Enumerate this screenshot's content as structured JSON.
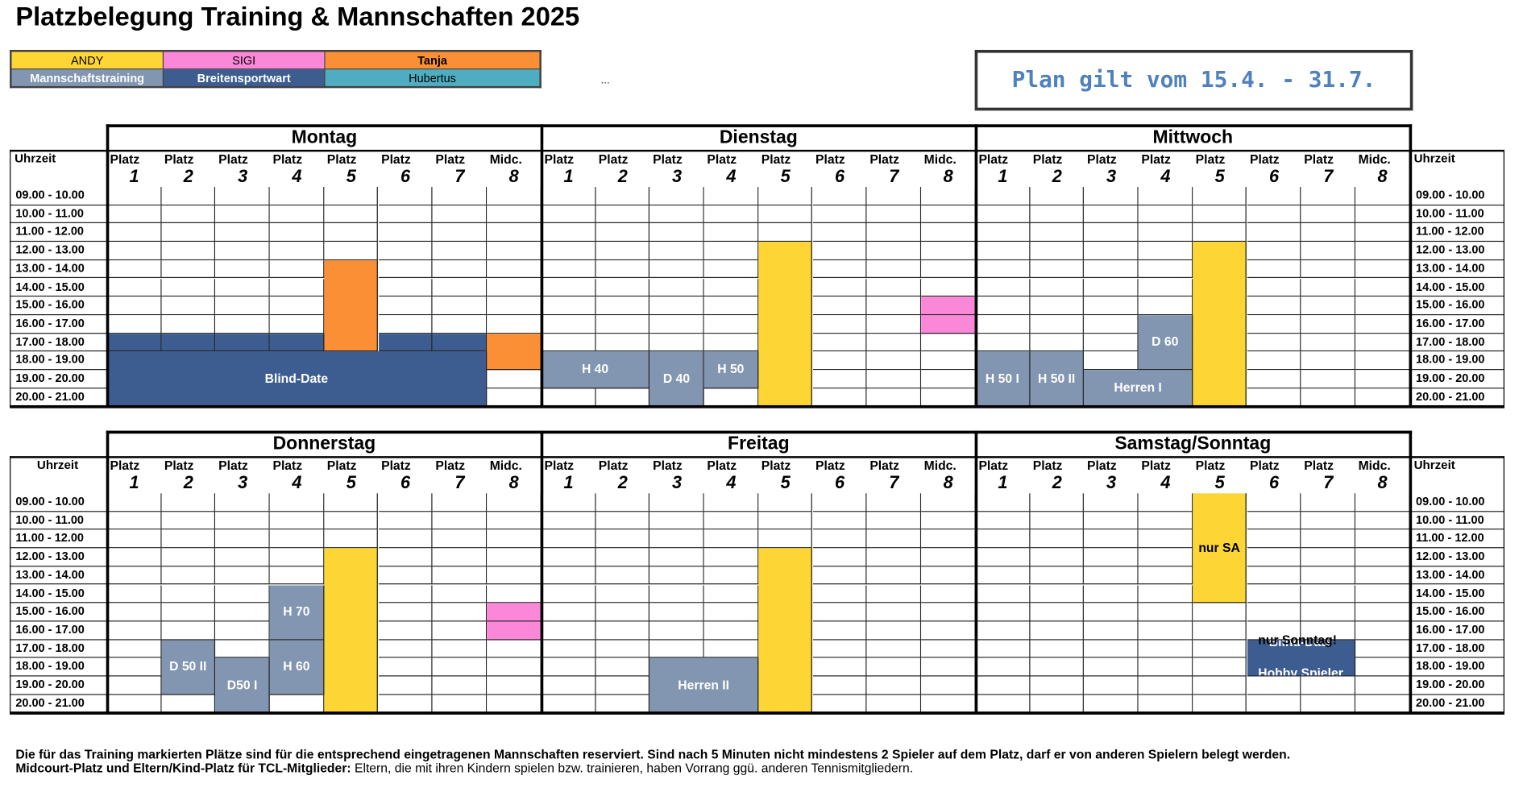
{
  "title": "Platzbelegung Training & Mannschaften 2025",
  "legend": [
    [
      {
        "text": "ANDY",
        "color": "#fdd534",
        "fg": "#000"
      },
      {
        "text": "SIGI",
        "color": "#fb87d8",
        "fg": "#000"
      },
      {
        "text": "Tanja",
        "color": "#fb8f35",
        "fg": "#000"
      }
    ],
    [
      {
        "text": "Mannschaftstraining",
        "color": "#8295b1",
        "fg": "#fff"
      },
      {
        "text": "Breitensportwart",
        "color": "#3d5d91",
        "fg": "#fff"
      },
      {
        "text": "Hubertus",
        "color": "#4fadc1",
        "fg": "#000"
      }
    ]
  ],
  "ellipsis": "...",
  "plan_text": "Plan gilt vom 15.4. - 31.7.",
  "uhrzeit_label": "Uhrzeit",
  "platz_labels": [
    "Platz",
    "Platz",
    "Platz",
    "Platz",
    "Platz",
    "Platz",
    "Platz",
    "Midc."
  ],
  "platz_numbers": [
    "1",
    "2",
    "3",
    "4",
    "5",
    "6",
    "7",
    "8"
  ],
  "times": [
    "09.00 - 10.00",
    "10.00 - 11.00",
    "11.00 - 12.00",
    "12.00 - 13.00",
    "13.00 - 14.00",
    "14.00 - 15.00",
    "15.00 - 16.00",
    "16.00 - 17.00",
    "17.00 - 18.00",
    "18.00 - 19.00",
    "19.00 - 20.00",
    "20.00 - 21.00"
  ],
  "colors": {
    "andy": "#fdd534",
    "sigi": "#fb87d8",
    "tanja": "#fb8f35",
    "mannschaft": "#8295b1",
    "breiten": "#3d5d91",
    "hubertus": "#4fadc1"
  },
  "schedules": [
    {
      "days": [
        {
          "name": "Montag",
          "blocks": [
            {
              "court": 5,
              "start": 4,
              "span": 5,
              "color": "tanja",
              "label": ""
            },
            {
              "court": 1,
              "start": 8,
              "span": 1,
              "color": "breiten",
              "label": ""
            },
            {
              "court": 2,
              "start": 8,
              "span": 1,
              "color": "breiten",
              "label": ""
            },
            {
              "court": 3,
              "start": 8,
              "span": 1,
              "color": "breiten",
              "label": ""
            },
            {
              "court": 4,
              "start": 8,
              "span": 1,
              "color": "breiten",
              "label": ""
            },
            {
              "court": 6,
              "start": 8,
              "span": 1,
              "color": "breiten",
              "label": ""
            },
            {
              "court": 7,
              "start": 8,
              "span": 1,
              "color": "breiten",
              "label": ""
            },
            {
              "court": 8,
              "start": 8,
              "span": 2,
              "color": "tanja",
              "label": ""
            },
            {
              "court": 1,
              "start": 9,
              "span": 3,
              "wide": 7,
              "color": "breiten",
              "label": "Blind-Date"
            }
          ]
        },
        {
          "name": "Dienstag",
          "blocks": [
            {
              "court": 5,
              "start": 3,
              "span": 9,
              "color": "andy",
              "label": ""
            },
            {
              "court": 8,
              "start": 6,
              "span": 1,
              "color": "sigi",
              "label": ""
            },
            {
              "court": 8,
              "start": 7,
              "span": 1,
              "color": "sigi",
              "label": ""
            },
            {
              "court": 1,
              "start": 9,
              "span": 2,
              "wide": 2,
              "color": "mannschaft",
              "label": "H 40"
            },
            {
              "court": 3,
              "start": 9,
              "span": 3,
              "color": "mannschaft",
              "label": "D 40"
            },
            {
              "court": 4,
              "start": 9,
              "span": 2,
              "color": "mannschaft",
              "label": "H 50"
            }
          ]
        },
        {
          "name": "Mittwoch",
          "blocks": [
            {
              "court": 5,
              "start": 3,
              "span": 9,
              "color": "andy",
              "label": ""
            },
            {
              "court": 4,
              "start": 7,
              "span": 3,
              "color": "mannschaft",
              "label": "D 60"
            },
            {
              "court": 1,
              "start": 9,
              "span": 3,
              "color": "mannschaft",
              "label": "H 50 I"
            },
            {
              "court": 2,
              "start": 9,
              "span": 3,
              "color": "mannschaft",
              "label": "H 50 II"
            },
            {
              "court": 3,
              "start": 10,
              "span": 2,
              "wide": 2,
              "color": "mannschaft",
              "label": "Herren I"
            }
          ]
        }
      ]
    },
    {
      "days": [
        {
          "name": "Donnerstag",
          "blocks": [
            {
              "court": 5,
              "start": 3,
              "span": 9,
              "color": "andy",
              "label": ""
            },
            {
              "court": 4,
              "start": 5,
              "span": 3,
              "color": "mannschaft",
              "label": "H 70"
            },
            {
              "court": 8,
              "start": 6,
              "span": 1,
              "color": "sigi",
              "label": ""
            },
            {
              "court": 8,
              "start": 7,
              "span": 1,
              "color": "sigi",
              "label": ""
            },
            {
              "court": 2,
              "start": 8,
              "span": 3,
              "color": "mannschaft",
              "label": "D 50 II"
            },
            {
              "court": 4,
              "start": 8,
              "span": 3,
              "color": "mannschaft",
              "label": "H 60"
            },
            {
              "court": 3,
              "start": 9,
              "span": 3,
              "color": "mannschaft",
              "label": "D50 I"
            }
          ]
        },
        {
          "name": "Freitag",
          "blocks": [
            {
              "court": 5,
              "start": 3,
              "span": 9,
              "color": "andy",
              "label": ""
            },
            {
              "court": 3,
              "start": 9,
              "span": 3,
              "wide": 2,
              "color": "mannschaft",
              "label": "Herren II"
            }
          ]
        },
        {
          "name": "Samstag/Sonntag",
          "blocks": [
            {
              "court": 5,
              "start": 0,
              "span": 6,
              "color": "andy",
              "label": "nur SA"
            },
            {
              "court": 6,
              "start": 8,
              "span": 2,
              "wide": 2,
              "color": "breiten",
              "label": "Blind-Date\nHobby Spieler"
            }
          ]
        }
      ]
    }
  ],
  "note_sonntag": "nur Sonntag!",
  "footer": {
    "line1": "Die für das Training markierten Plätze sind für die entsprechend eingetragenen Mannschaften reserviert. Sind nach 5 Minuten nicht mindestens 2 Spieler auf dem Platz, darf er von anderen Spielern belegt werden.",
    "line2_bold": "Midcourt-Platz und Eltern/Kind-Platz für TCL-Mitglieder:",
    "line2_rest": " Eltern, die mit ihren Kindern spielen bzw. trainieren, haben Vorrang ggü. anderen Tennismitgliedern."
  }
}
